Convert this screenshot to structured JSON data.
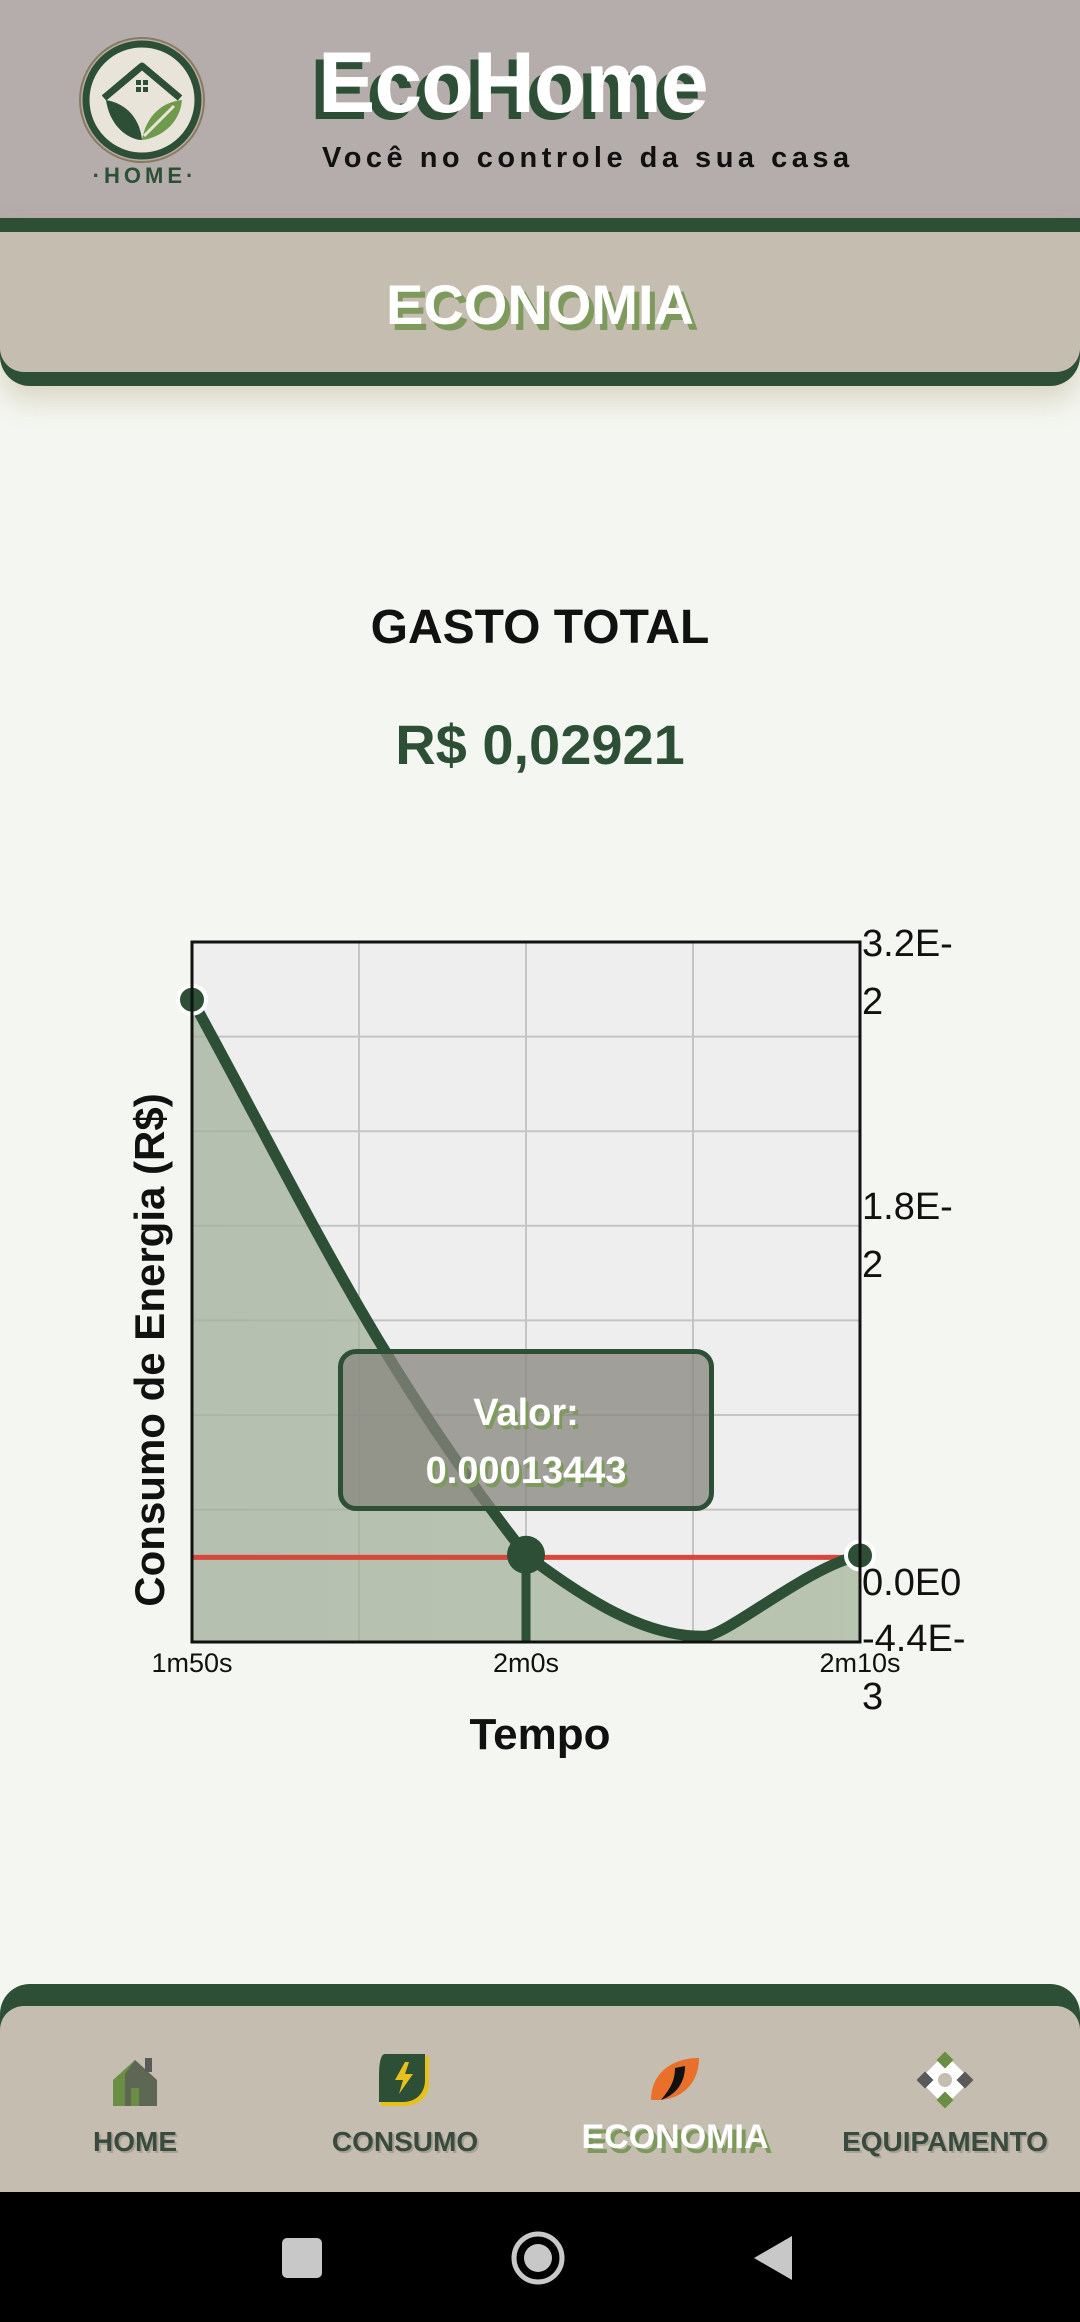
{
  "header": {
    "title": "EcoHome",
    "subtitle": "Você no controle da sua casa",
    "logo_text": "·HOME·",
    "brand_color": "#2d4f36"
  },
  "banner": {
    "title": "ECONOMIA"
  },
  "summary": {
    "label": "GASTO TOTAL",
    "value": "R$ 0,02921"
  },
  "chart_data": {
    "type": "area",
    "xlabel": "Tempo",
    "ylabel": "Consumo de Energia (R$)",
    "x_ticks": [
      "1m50s",
      "2m0s",
      "2m10s"
    ],
    "y_ticks": [
      "3.2E-2",
      "1.8E-2",
      "0.0E0",
      "-4.4E-3"
    ],
    "x_seconds": [
      110,
      120,
      130
    ],
    "series": [
      {
        "values": [
          0.029,
          0.00013443,
          0.0001
        ]
      }
    ],
    "highlight": {
      "x_seconds": 120,
      "label": "Valor:",
      "value": "0.00013443"
    },
    "ylim": [
      -0.0044,
      0.032
    ],
    "xlim": [
      110,
      130
    ],
    "grid": true,
    "line_color": "#2d4f36",
    "fill_color": "#a6b79a",
    "limit_line_color": "#d9463a"
  },
  "nav": {
    "items": [
      {
        "label": "HOME",
        "icon": "home-icon",
        "active": false
      },
      {
        "label": "CONSUMO",
        "icon": "lightning-icon",
        "active": false
      },
      {
        "label": "ECONOMIA",
        "icon": "leaf-icon",
        "active": true
      },
      {
        "label": "EQUIPAMENTO",
        "icon": "devices-icon",
        "active": false
      }
    ]
  },
  "system_bar": {
    "buttons": [
      "recent-apps",
      "home",
      "back"
    ]
  }
}
